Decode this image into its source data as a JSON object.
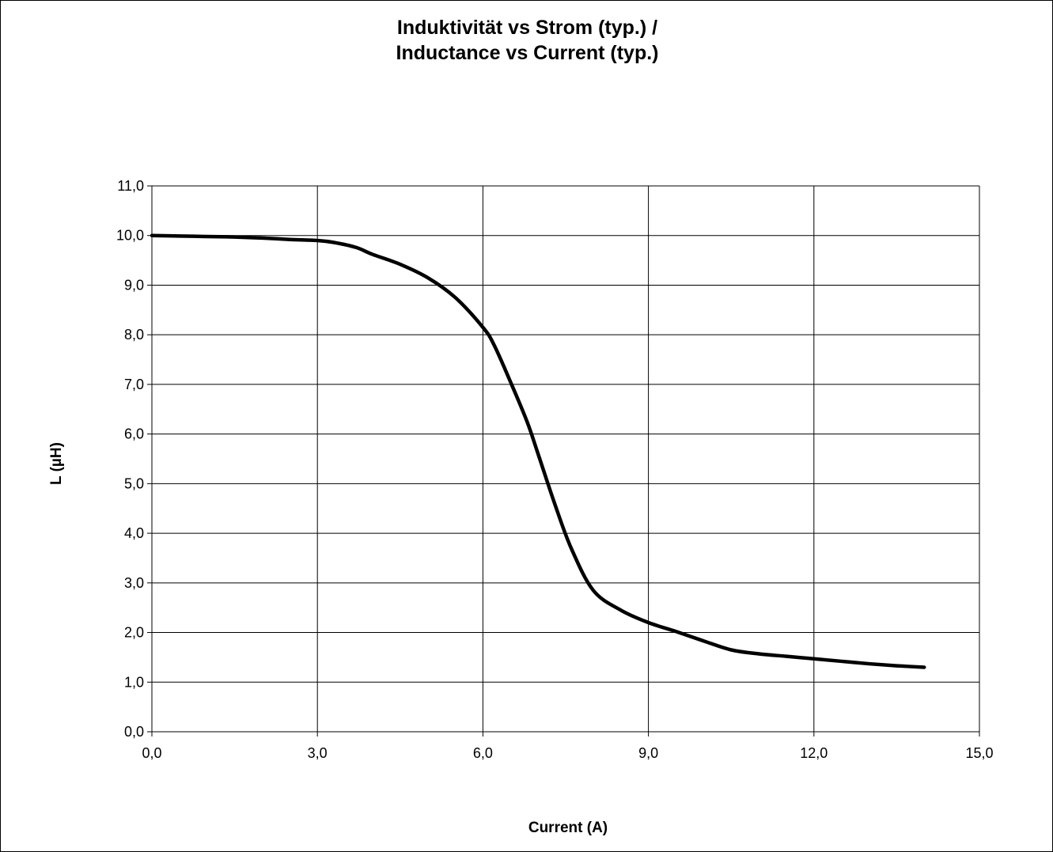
{
  "chart_data": {
    "type": "line",
    "title": [
      "Induktivität vs Strom (typ.) /",
      "Inductance vs Current (typ.)"
    ],
    "xlabel": "Current (A)",
    "ylabel": "L (µH)",
    "xlim": [
      0,
      15
    ],
    "ylim": [
      0,
      11
    ],
    "x_ticks": [
      "0,0",
      "3,0",
      "6,0",
      "9,0",
      "12,0",
      "15,0"
    ],
    "y_ticks": [
      "0,0",
      "1,0",
      "2,0",
      "3,0",
      "4,0",
      "5,0",
      "6,0",
      "7,0",
      "8,0",
      "9,0",
      "10,0",
      "11,0"
    ],
    "grid": true,
    "line_color": "#000000",
    "series": [
      {
        "x": [
          0.0,
          0.5,
          1.0,
          1.5,
          2.0,
          2.5,
          3.0,
          3.3,
          3.7,
          4.0,
          4.5,
          5.0,
          5.5,
          6.0,
          6.2,
          6.5,
          6.8,
          7.0,
          7.3,
          7.6,
          8.0,
          8.5,
          9.0,
          9.5,
          10.0,
          10.5,
          11.0,
          11.5,
          12.0,
          12.5,
          13.0,
          13.5,
          14.0
        ],
        "y": [
          10.0,
          9.99,
          9.98,
          9.97,
          9.95,
          9.92,
          9.9,
          9.86,
          9.76,
          9.62,
          9.42,
          9.15,
          8.75,
          8.15,
          7.8,
          7.05,
          6.25,
          5.6,
          4.6,
          3.7,
          2.85,
          2.45,
          2.2,
          2.02,
          1.83,
          1.65,
          1.57,
          1.52,
          1.47,
          1.42,
          1.37,
          1.33,
          1.3
        ]
      }
    ]
  }
}
